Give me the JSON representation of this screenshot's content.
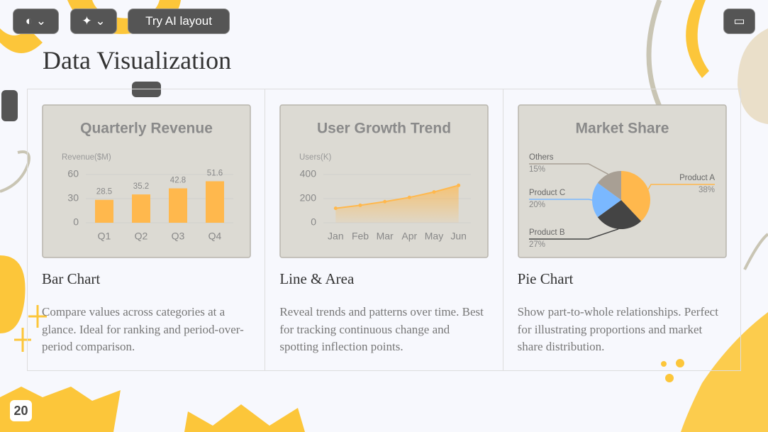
{
  "toolbar": {
    "ai_button": "Try AI layout"
  },
  "slide": {
    "title": "Data Visualization",
    "page_number": 20,
    "cards": [
      {
        "heading": "Bar Chart",
        "description": "Compare values across categories at a glance. Ideal for ranking and period-over-period comparison.",
        "chart": {
          "type": "bar",
          "title": "Quarterly Revenue",
          "y_label": "Revenue($M)",
          "categories": [
            "Q1",
            "Q2",
            "Q3",
            "Q4"
          ],
          "values": [
            28.5,
            35.2,
            42.8,
            51.6
          ],
          "color": "#ffb84d",
          "ylim": [
            0,
            60
          ],
          "yticks": [
            0,
            30,
            60
          ],
          "grid": true
        }
      },
      {
        "heading": "Line & Area",
        "description": "Reveal trends and patterns over time. Best for tracking continuous change and spotting inflection points.",
        "chart": {
          "type": "line",
          "title": "User Growth Trend",
          "y_label": "Users(K)",
          "categories": [
            "Jan",
            "Feb",
            "Mar",
            "Apr",
            "May",
            "Jun"
          ],
          "values": [
            120,
            145,
            175,
            210,
            255,
            310
          ],
          "color": "#ffb84d",
          "ylim": [
            0,
            400
          ],
          "yticks": [
            0,
            200,
            400
          ],
          "grid": true
        }
      },
      {
        "heading": "Pie Chart",
        "description": "Show part-to-whole relationships. Perfect for illustrating proportions and market share distribution.",
        "chart": {
          "type": "pie",
          "title": "Market Share",
          "series": [
            {
              "name": "Product A",
              "color": "#ffb84d",
              "values": [
                38
              ],
              "value_labels": [
                "38%"
              ]
            },
            {
              "name": "Product B",
              "color": "#444444",
              "values": [
                27
              ],
              "value_labels": [
                "27%"
              ]
            },
            {
              "name": "Product C",
              "color": "#7ab8ff",
              "values": [
                20
              ],
              "value_labels": [
                "20%"
              ]
            },
            {
              "name": "Others",
              "color": "#a89f94",
              "values": [
                15
              ],
              "value_labels": [
                "15%"
              ]
            }
          ]
        }
      }
    ]
  }
}
